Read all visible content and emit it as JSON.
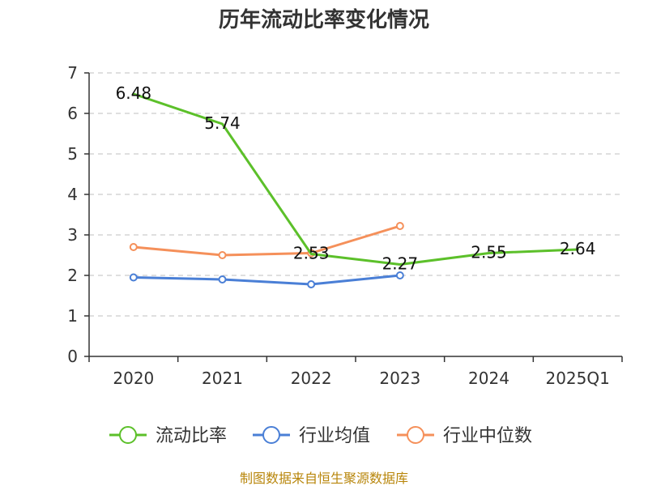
{
  "chart_data": {
    "type": "line",
    "title": "历年流动比率变化情况",
    "categories": [
      "2020",
      "2021",
      "2022",
      "2023",
      "2024",
      "2025Q1"
    ],
    "ylim": [
      0,
      7
    ],
    "yticks": [
      "0",
      "1",
      "2",
      "3",
      "4",
      "5",
      "6",
      "7"
    ],
    "grid": true,
    "legend_position": "bottom",
    "series": [
      {
        "name": "流动比率",
        "color": "#5cc02a",
        "values": [
          6.48,
          5.74,
          2.53,
          2.27,
          2.55,
          2.64
        ],
        "labels": [
          "6.48",
          "5.74",
          "2.53",
          "2.27",
          "2.55",
          "2.64"
        ],
        "markers": false
      },
      {
        "name": "行业均值",
        "color": "#4a7fd6",
        "values": [
          1.95,
          1.9,
          1.78,
          2.0,
          null,
          null
        ],
        "markers": true
      },
      {
        "name": "行业中位数",
        "color": "#f5905a",
        "values": [
          2.7,
          2.5,
          2.55,
          3.22,
          null,
          null
        ],
        "markers": true
      }
    ]
  },
  "footer": {
    "source": "制图数据来自恒生聚源数据库"
  }
}
